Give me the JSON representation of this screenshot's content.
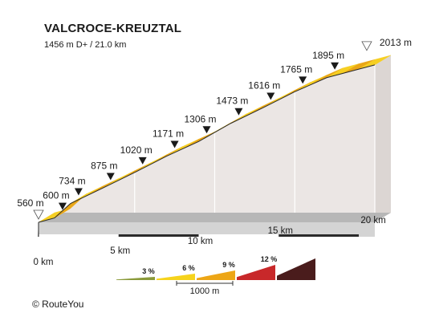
{
  "header": {
    "title": "VALCROCE-KREUZTAL",
    "subtitle": "1456 m D+ / 21.0 km"
  },
  "copyright": "©  RouteYou",
  "chart_data": {
    "type": "area",
    "title": "VALCROCE-KREUZTAL",
    "subtitle": "1456 m D+ / 21.0 km",
    "xlabel": "",
    "ylabel": "",
    "x_unit": "km",
    "y_unit": "m",
    "xlim": [
      0,
      21
    ],
    "x_ticks": [
      {
        "value": 0,
        "label": "0 km"
      },
      {
        "value": 5,
        "label": "5 km"
      },
      {
        "value": 10,
        "label": "10 km"
      },
      {
        "value": 15,
        "label": "15 km"
      },
      {
        "value": 20,
        "label": "20 km"
      }
    ],
    "points": [
      {
        "x": 0.0,
        "y": 560,
        "label": "560 m",
        "marker": "start"
      },
      {
        "x": 1.0,
        "y": 600,
        "label": "600 m",
        "marker": "km"
      },
      {
        "x": 2.0,
        "y": 734,
        "label": "734 m",
        "marker": "km"
      },
      {
        "x": 4.0,
        "y": 875,
        "label": "875 m",
        "marker": "km"
      },
      {
        "x": 6.0,
        "y": 1020,
        "label": "1020 m",
        "marker": "km"
      },
      {
        "x": 8.0,
        "y": 1171,
        "label": "1171 m",
        "marker": "km"
      },
      {
        "x": 10.0,
        "y": 1306,
        "label": "1306 m",
        "marker": "km"
      },
      {
        "x": 12.0,
        "y": 1473,
        "label": "1473 m",
        "marker": "km"
      },
      {
        "x": 14.0,
        "y": 1616,
        "label": "1616 m",
        "marker": "km"
      },
      {
        "x": 16.0,
        "y": 1765,
        "label": "1765 m",
        "marker": "km"
      },
      {
        "x": 18.0,
        "y": 1895,
        "label": "1895 m",
        "marker": "km"
      },
      {
        "x": 21.0,
        "y": 2013,
        "label": "2013 m",
        "marker": "end"
      }
    ],
    "gradient_legend": {
      "items": [
        {
          "label": "3 %",
          "color": "#8a9a3a"
        },
        {
          "label": "6 %",
          "color": "#f6d31c"
        },
        {
          "label": "9 %",
          "color": "#eda616"
        },
        {
          "label": "12 %",
          "color": "#c8282a"
        },
        {
          "label": "",
          "color": "#4a1c1c"
        }
      ],
      "scale_label": "1000 m"
    },
    "colors": {
      "segment_light": "#f6cf22",
      "segment_dark": "#eaa717",
      "side": "#ebe6e4",
      "base": "#8a8a8a",
      "base_top": "#b7b7b7"
    }
  }
}
